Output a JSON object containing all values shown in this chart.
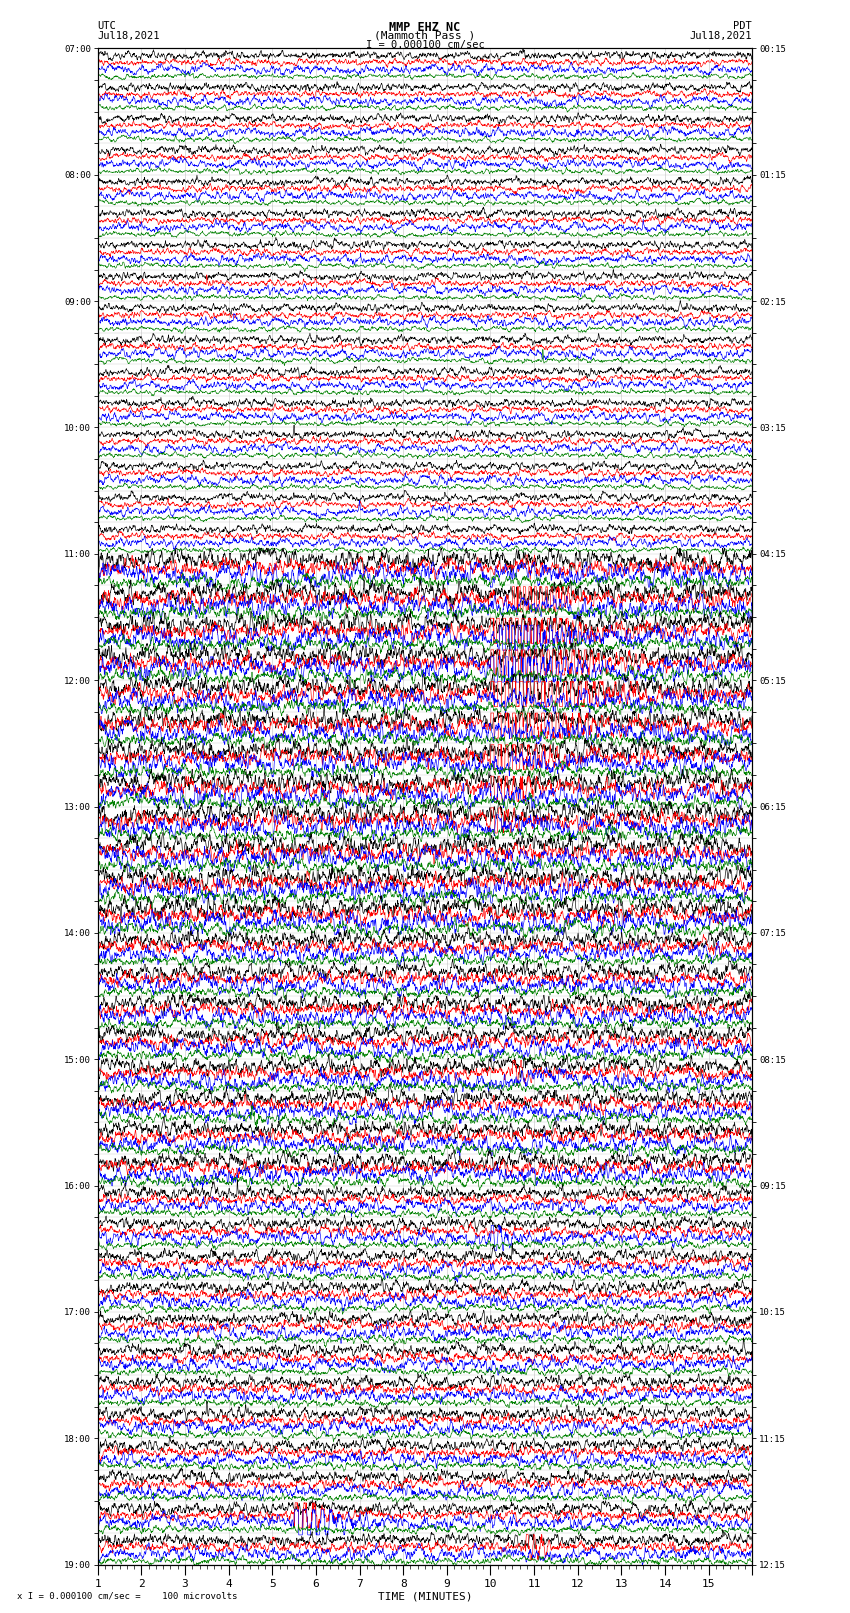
{
  "title_line1": "MMP EHZ NC",
  "title_line2": "(Mammoth Pass )",
  "title_scale": "I = 0.000100 cm/sec",
  "left_header_line1": "UTC",
  "left_header_line2": "Jul18,2021",
  "right_header_line1": "PDT",
  "right_header_line2": "Jul18,2021",
  "xlabel": "TIME (MINUTES)",
  "bottom_note": "x I = 0.000100 cm/sec =    100 microvolts",
  "bg_color": "#ffffff",
  "trace_colors": [
    "black",
    "red",
    "blue",
    "green"
  ],
  "num_rows": 48,
  "minutes_per_row": 15
}
